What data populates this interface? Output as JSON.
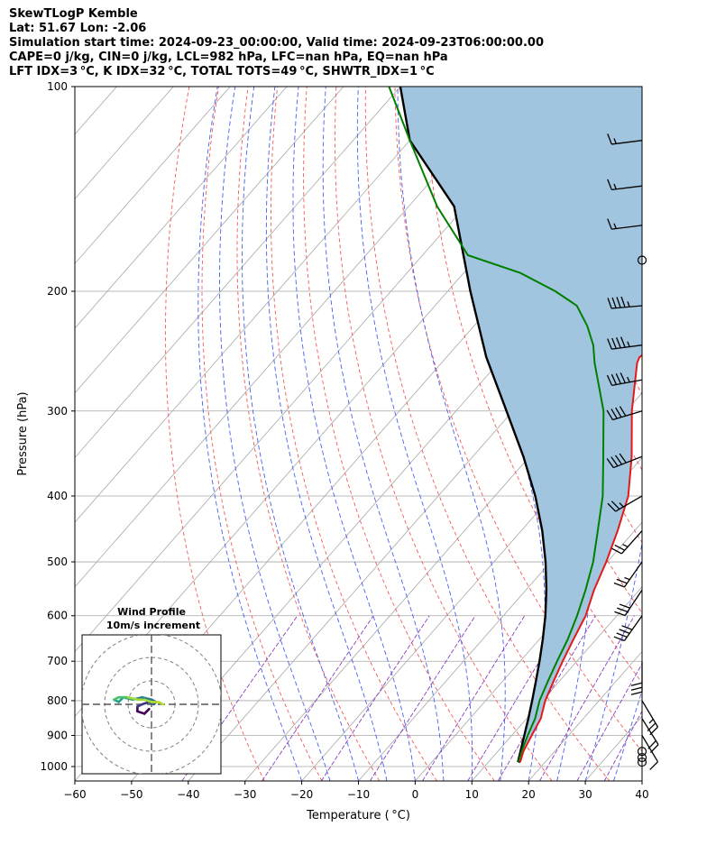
{
  "title_lines": [
    "SkewTLogP Kemble",
    "Lat: 51.67   Lon: -2.06",
    "Simulation start time: 2024-09-23_00:00:00, Valid time: 2024-09-23T06:00:00.00",
    "CAPE=0 j/kg, CIN=0 j/kg, LCL=982 hPa, LFC=nan hPa, EQ=nan hPa",
    "LFT IDX=3 °C, K IDX=32 °C, TOTAL TOTS=49 °C, SHWTR_IDX=1 °C"
  ],
  "chart_data": {
    "type": "line",
    "subtype": "skew-t log-p",
    "xlabel": "Temperature ( °C)",
    "ylabel": "Pressure (hPa)",
    "xlim": [
      -60,
      40
    ],
    "ylim": [
      1050,
      100
    ],
    "y_scale": "log",
    "x_ticks": [
      -60,
      -50,
      -40,
      -30,
      -20,
      -10,
      0,
      10,
      20,
      30,
      40
    ],
    "x_tick_labels": [
      "−60",
      "−50",
      "−40",
      "−30",
      "−20",
      "−10",
      "0",
      "10",
      "20",
      "30",
      "40"
    ],
    "y_ticks": [
      1000,
      900,
      800,
      700,
      600,
      500,
      400,
      300,
      200,
      100
    ],
    "y_tick_labels": [
      "1000",
      "900",
      "800",
      "700",
      "600",
      "500",
      "400",
      "300",
      "200",
      "100"
    ],
    "grid": true,
    "colors": {
      "temperature": "#e31a1c",
      "dewpoint": "#007f00",
      "parcel": "#000000",
      "cape_fill": "#a2c5df",
      "dry_adiabat": "#f05b5b",
      "moist_adiabat": "#4a5ef0",
      "mixing_ratio": "#8a3fbf",
      "isotherm": "#a8a8a8"
    },
    "series": [
      {
        "role": "temperature",
        "points": [
          [
            15.6,
            985
          ],
          [
            14.5,
            950
          ],
          [
            13.5,
            900
          ],
          [
            12.5,
            850
          ],
          [
            10.5,
            800
          ],
          [
            9.0,
            750
          ],
          [
            7.5,
            700
          ],
          [
            6.0,
            650
          ],
          [
            4.5,
            600
          ],
          [
            2.0,
            550
          ],
          [
            -0.2,
            500
          ],
          [
            -3.0,
            450
          ],
          [
            -6.5,
            400
          ],
          [
            -12.0,
            350
          ],
          [
            -19.0,
            300
          ],
          [
            -25.5,
            255
          ],
          [
            -26.0,
            250
          ],
          [
            -25.0,
            240
          ],
          [
            -24.5,
            230
          ],
          [
            -23.5,
            220
          ],
          [
            -22.0,
            210
          ],
          [
            -21.0,
            200
          ],
          [
            -20.5,
            190
          ],
          [
            -20.0,
            180
          ],
          [
            -21.0,
            170
          ],
          [
            -24.0,
            160
          ],
          [
            -30.0,
            150
          ],
          [
            -36.0,
            140
          ],
          [
            -43.0,
            130
          ],
          [
            -50.0,
            120
          ],
          [
            -57.0,
            110
          ],
          [
            -63.0,
            100
          ]
        ]
      },
      {
        "role": "dewpoint",
        "points": [
          [
            15.3,
            985
          ],
          [
            14.2,
            950
          ],
          [
            12.8,
            900
          ],
          [
            11.5,
            850
          ],
          [
            9.5,
            800
          ],
          [
            8.0,
            750
          ],
          [
            6.5,
            700
          ],
          [
            5.0,
            650
          ],
          [
            3.0,
            600
          ],
          [
            0.5,
            550
          ],
          [
            -2.5,
            500
          ],
          [
            -6.5,
            450
          ],
          [
            -11.0,
            400
          ],
          [
            -17.0,
            350
          ],
          [
            -24.0,
            300
          ],
          [
            -33.0,
            255
          ],
          [
            -36.0,
            240
          ],
          [
            -40.0,
            225
          ],
          [
            -45.0,
            210
          ],
          [
            -51.0,
            200
          ],
          [
            -60.0,
            188
          ],
          [
            -72.0,
            177
          ],
          [
            -85.0,
            150
          ],
          [
            -100.0,
            120
          ],
          [
            -112.0,
            100
          ]
        ]
      },
      {
        "role": "parcel",
        "points": [
          [
            15.6,
            985
          ],
          [
            15.1,
            982
          ],
          [
            14.0,
            950
          ],
          [
            12.2,
            900
          ],
          [
            10.3,
            850
          ],
          [
            8.2,
            800
          ],
          [
            5.9,
            750
          ],
          [
            3.4,
            700
          ],
          [
            0.6,
            650
          ],
          [
            -2.6,
            600
          ],
          [
            -6.4,
            550
          ],
          [
            -10.9,
            500
          ],
          [
            -16.3,
            450
          ],
          [
            -22.9,
            400
          ],
          [
            -31.1,
            350
          ],
          [
            -41.1,
            300
          ],
          [
            -53.0,
            250
          ],
          [
            -66.0,
            200
          ],
          [
            -82.0,
            150
          ],
          [
            -100.0,
            120
          ],
          [
            -110.0,
            100
          ]
        ]
      }
    ],
    "wind_barbs": [
      {
        "p": 985,
        "calm": true
      },
      {
        "p": 970,
        "calm": true
      },
      {
        "p": 950,
        "calm": true
      },
      {
        "p": 900,
        "u": -3,
        "v": 5
      },
      {
        "p": 850,
        "u": -5,
        "v": 8
      },
      {
        "p": 800,
        "u": -6,
        "v": 10
      },
      {
        "p": 700,
        "u": 0,
        "v": 15
      },
      {
        "p": 600,
        "u": 12,
        "v": 17
      },
      {
        "p": 550,
        "u": 8,
        "v": 12
      },
      {
        "p": 500,
        "u": 7,
        "v": 10
      },
      {
        "p": 450,
        "u": 8,
        "v": 9
      },
      {
        "p": 400,
        "u": 12,
        "v": 7
      },
      {
        "p": 350,
        "u": 18,
        "v": 7
      },
      {
        "p": 300,
        "u": 20,
        "v": 6
      },
      {
        "p": 270,
        "u": 22,
        "v": 4
      },
      {
        "p": 240,
        "u": 23,
        "v": 3
      },
      {
        "p": 210,
        "u": 22,
        "v": 2
      },
      {
        "p": 180,
        "calm": true
      },
      {
        "p": 160,
        "u": 8,
        "v": 1
      },
      {
        "p": 140,
        "u": 8,
        "v": 1
      },
      {
        "p": 120,
        "u": 8,
        "v": 1
      }
    ],
    "hodograph": {
      "title": "Wind Profile",
      "subtitle": "10m/s increment",
      "rings": [
        10,
        20,
        30
      ],
      "points": [
        [
          -1,
          -2
        ],
        [
          -3,
          -4
        ],
        [
          -6,
          -3
        ],
        [
          -6,
          -1
        ],
        [
          -4,
          0
        ],
        [
          -1,
          1
        ],
        [
          1,
          0
        ],
        [
          2,
          1
        ],
        [
          0,
          2
        ],
        [
          -4,
          3
        ],
        [
          -8,
          2
        ],
        [
          -12,
          3
        ],
        [
          -14,
          1
        ],
        [
          -16,
          2
        ],
        [
          -14,
          3
        ],
        [
          -10,
          3
        ],
        [
          -6,
          2
        ],
        [
          -3,
          2
        ],
        [
          0,
          1
        ],
        [
          3,
          1
        ],
        [
          5,
          0
        ]
      ]
    }
  }
}
